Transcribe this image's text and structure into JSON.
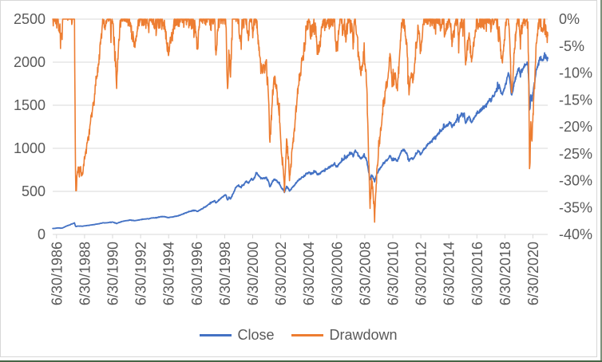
{
  "window": {
    "background": "#FFFFFF",
    "chart_border_color": "#D8D8D8",
    "screen_edge_right_color": "#7E917B",
    "screen_edge_bottom_color": "#476647"
  },
  "chart": {
    "title": "",
    "font_color": "#595959",
    "gridline_color": "#D9D9D9",
    "axis_line_color": "#D9D9D9",
    "legend": [
      {
        "label": "Close",
        "color": "#4472C4"
      },
      {
        "label": "Drawdown",
        "color": "#ED7D31"
      }
    ],
    "y_axis_left": {
      "labels": [
        "2500",
        "2000",
        "1500",
        "1000",
        "500",
        "0"
      ],
      "min": 0,
      "max": 2500
    },
    "y_axis_right": {
      "labels": [
        "0%",
        "-5%",
        "-10%",
        "-15%",
        "-20%",
        "-25%",
        "-30%",
        "-35%",
        "-40%"
      ],
      "min": -40,
      "max": 0
    },
    "x_axis": {
      "tick_labels": [
        "6/30/1986",
        "6/30/1988",
        "6/30/1990",
        "6/30/1992",
        "6/30/1994",
        "6/30/1996",
        "6/30/1998",
        "6/30/2000",
        "6/30/2002",
        "6/30/2004",
        "6/30/2006",
        "6/30/2008",
        "6/30/2010",
        "6/30/2012",
        "6/30/2014",
        "6/30/2016",
        "6/30/2018",
        "6/30/2020"
      ],
      "label_rotation_deg": -90
    }
  },
  "chart_data": {
    "type": "line",
    "x_domain_years": [
      1986.23,
      2021.56
    ],
    "frequency": "weekly",
    "series": [
      {
        "name": "Close",
        "axis": "left",
        "color": "#4472C4",
        "anchors_year_value": [
          [
            1986.23,
            68
          ],
          [
            1986.6,
            75
          ],
          [
            1986.9,
            73
          ],
          [
            1987.2,
            96
          ],
          [
            1987.5,
            115
          ],
          [
            1987.78,
            133
          ],
          [
            1987.83,
            108
          ],
          [
            1987.87,
            90
          ],
          [
            1988.0,
            97
          ],
          [
            1988.35,
            96
          ],
          [
            1988.7,
            104
          ],
          [
            1989.1,
            112
          ],
          [
            1989.5,
            124
          ],
          [
            1989.8,
            134
          ],
          [
            1990.1,
            136
          ],
          [
            1990.5,
            144
          ],
          [
            1990.8,
            128
          ],
          [
            1991.05,
            146
          ],
          [
            1991.4,
            158
          ],
          [
            1991.75,
            166
          ],
          [
            1992.1,
            160
          ],
          [
            1992.5,
            172
          ],
          [
            1992.9,
            180
          ],
          [
            1993.3,
            189
          ],
          [
            1993.7,
            197
          ],
          [
            1994.1,
            209
          ],
          [
            1994.45,
            196
          ],
          [
            1994.8,
            203
          ],
          [
            1995.2,
            218
          ],
          [
            1995.6,
            243
          ],
          [
            1996.0,
            268
          ],
          [
            1996.35,
            281
          ],
          [
            1996.55,
            266
          ],
          [
            1996.9,
            298
          ],
          [
            1997.3,
            340
          ],
          [
            1997.6,
            376
          ],
          [
            1997.8,
            392
          ],
          [
            1997.88,
            363
          ],
          [
            1998.15,
            405
          ],
          [
            1998.4,
            443
          ],
          [
            1998.57,
            462
          ],
          [
            1998.7,
            399
          ],
          [
            1998.82,
            430
          ],
          [
            1998.9,
            411
          ],
          [
            1999.1,
            470
          ],
          [
            1999.3,
            545
          ],
          [
            1999.5,
            570
          ],
          [
            1999.65,
            545
          ],
          [
            1999.85,
            585
          ],
          [
            2000.05,
            620
          ],
          [
            2000.2,
            598
          ],
          [
            2000.4,
            650
          ],
          [
            2000.55,
            630
          ],
          [
            2000.78,
            715
          ],
          [
            2001.0,
            668
          ],
          [
            2001.2,
            640
          ],
          [
            2001.4,
            665
          ],
          [
            2001.6,
            630
          ],
          [
            2001.73,
            560
          ],
          [
            2001.95,
            625
          ],
          [
            2002.1,
            640
          ],
          [
            2002.35,
            598
          ],
          [
            2002.55,
            545
          ],
          [
            2002.77,
            490
          ],
          [
            2002.92,
            558
          ],
          [
            2003.12,
            505
          ],
          [
            2003.35,
            545
          ],
          [
            2003.65,
            605
          ],
          [
            2003.95,
            648
          ],
          [
            2004.25,
            692
          ],
          [
            2004.5,
            720
          ],
          [
            2004.7,
            705
          ],
          [
            2005.0,
            730
          ],
          [
            2005.15,
            690
          ],
          [
            2005.45,
            735
          ],
          [
            2005.75,
            755
          ],
          [
            2006.05,
            790
          ],
          [
            2006.35,
            822
          ],
          [
            2006.5,
            780
          ],
          [
            2006.85,
            855
          ],
          [
            2007.15,
            890
          ],
          [
            2007.4,
            930
          ],
          [
            2007.55,
            945
          ],
          [
            2007.68,
            915
          ],
          [
            2007.82,
            980
          ],
          [
            2008.0,
            930
          ],
          [
            2008.2,
            880
          ],
          [
            2008.45,
            915
          ],
          [
            2008.65,
            850
          ],
          [
            2008.78,
            720
          ],
          [
            2008.88,
            645
          ],
          [
            2008.98,
            695
          ],
          [
            2009.1,
            655
          ],
          [
            2009.2,
            617
          ],
          [
            2009.35,
            695
          ],
          [
            2009.55,
            760
          ],
          [
            2009.8,
            815
          ],
          [
            2010.1,
            870
          ],
          [
            2010.32,
            920
          ],
          [
            2010.48,
            848
          ],
          [
            2010.65,
            880
          ],
          [
            2010.82,
            855
          ],
          [
            2011.05,
            945
          ],
          [
            2011.28,
            988
          ],
          [
            2011.5,
            940
          ],
          [
            2011.65,
            846
          ],
          [
            2011.8,
            895
          ],
          [
            2011.95,
            870
          ],
          [
            2012.15,
            945
          ],
          [
            2012.35,
            968
          ],
          [
            2012.5,
            932
          ],
          [
            2012.75,
            1000
          ],
          [
            2013.05,
            1045
          ],
          [
            2013.45,
            1120
          ],
          [
            2013.85,
            1185
          ],
          [
            2014.25,
            1255
          ],
          [
            2014.6,
            1300
          ],
          [
            2014.78,
            1258
          ],
          [
            2015.1,
            1335
          ],
          [
            2015.4,
            1390
          ],
          [
            2015.58,
            1408
          ],
          [
            2015.7,
            1305
          ],
          [
            2015.95,
            1360
          ],
          [
            2016.12,
            1295
          ],
          [
            2016.45,
            1400
          ],
          [
            2016.75,
            1435
          ],
          [
            2017.1,
            1495
          ],
          [
            2017.5,
            1575
          ],
          [
            2017.9,
            1665
          ],
          [
            2018.1,
            1728
          ],
          [
            2018.25,
            1625
          ],
          [
            2018.5,
            1705
          ],
          [
            2018.77,
            1900
          ],
          [
            2018.98,
            1606
          ],
          [
            2019.2,
            1790
          ],
          [
            2019.45,
            1915
          ],
          [
            2019.62,
            1870
          ],
          [
            2019.85,
            1945
          ],
          [
            2020.05,
            1990
          ],
          [
            2020.14,
            2013
          ],
          [
            2020.2,
            1790
          ],
          [
            2020.26,
            1430
          ],
          [
            2020.35,
            1615
          ],
          [
            2020.45,
            1560
          ],
          [
            2020.6,
            1770
          ],
          [
            2020.75,
            1905
          ],
          [
            2020.92,
            2015
          ],
          [
            2021.05,
            2060
          ],
          [
            2021.2,
            2010
          ],
          [
            2021.38,
            2080
          ],
          [
            2021.5,
            2050
          ],
          [
            2021.56,
            2062
          ]
        ]
      },
      {
        "name": "Drawdown",
        "axis": "right",
        "color": "#ED7D31",
        "derivation": "close / running_max(close) - 1",
        "unit": "percent"
      }
    ],
    "weekly_noise": {
      "seed": 7,
      "sigma": 0.0075,
      "rho": 0.3,
      "spike_prob": 0.05,
      "spike_mult": 2.8
    },
    "notable_drawdowns_pct": {
      "1987": -32,
      "1990": -11,
      "1998": -13.5,
      "2001": -22,
      "2002": -31.5,
      "2009": -37,
      "2011": -14,
      "2018": -15.5,
      "2020": -29
    }
  }
}
